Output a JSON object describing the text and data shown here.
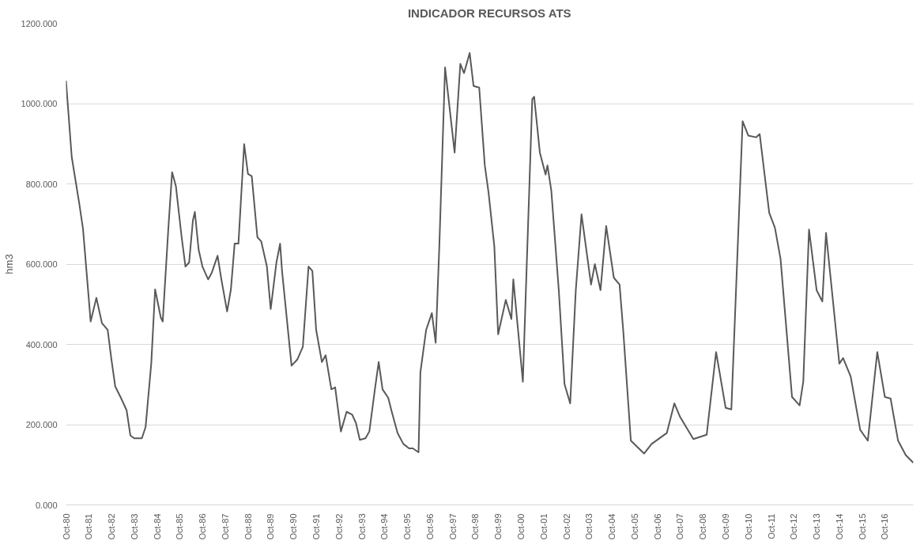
{
  "chart_data": {
    "type": "line",
    "title": "INDICADOR RECURSOS ATS",
    "ylabel": "hm3",
    "x": [
      "1980-10",
      "1981-01",
      "1981-05",
      "1981-07",
      "1981-11",
      "1982-02",
      "1982-05",
      "1982-08",
      "1982-10",
      "1982-12",
      "1983-03",
      "1983-06",
      "1983-08",
      "1983-10",
      "1984-02",
      "1984-04",
      "1984-07",
      "1984-09",
      "1984-12",
      "1985-01",
      "1985-04",
      "1985-06",
      "1985-08",
      "1985-11",
      "1986-01",
      "1986-03",
      "1986-05",
      "1986-06",
      "1986-08",
      "1986-10",
      "1987-01",
      "1987-03",
      "1987-06",
      "1987-08",
      "1987-11",
      "1988-01",
      "1988-03",
      "1988-05",
      "1988-08",
      "1988-10",
      "1988-12",
      "1989-03",
      "1989-05",
      "1989-08",
      "1989-10",
      "1990-01",
      "1990-03",
      "1990-04",
      "1990-08",
      "1990-09",
      "1990-12",
      "1991-03",
      "1991-06",
      "1991-08",
      "1991-10",
      "1992-01",
      "1992-03",
      "1992-06",
      "1992-08",
      "1992-11",
      "1993-02",
      "1993-05",
      "1993-07",
      "1993-09",
      "1993-12",
      "1994-02",
      "1994-05",
      "1994-07",
      "1994-09",
      "1994-12",
      "1995-02",
      "1995-05",
      "1995-08",
      "1995-11",
      "1996-01",
      "1996-04",
      "1996-05",
      "1996-08",
      "1996-11",
      "1997-01",
      "1997-03",
      "1997-06",
      "1997-11",
      "1998-02",
      "1998-04",
      "1998-07",
      "1998-09",
      "1998-12",
      "1999-03",
      "1999-05",
      "1999-08",
      "1999-10",
      "2000-02",
      "2000-05",
      "2000-06",
      "2000-11",
      "2001-04",
      "2001-05",
      "2001-08",
      "2001-11",
      "2001-12",
      "2002-02",
      "2002-06",
      "2002-09",
      "2002-12",
      "2003-03",
      "2003-06",
      "2003-11",
      "2004-01",
      "2004-04",
      "2004-07",
      "2004-11",
      "2005-02",
      "2005-04",
      "2005-08",
      "2006-03",
      "2006-07",
      "2007-03",
      "2007-07",
      "2007-10",
      "2008-05",
      "2008-12",
      "2009-05",
      "2009-10",
      "2010-01",
      "2010-07",
      "2010-10",
      "2011-02",
      "2011-04",
      "2011-09",
      "2011-12",
      "2012-03",
      "2012-09",
      "2013-01",
      "2013-03",
      "2013-06",
      "2013-10",
      "2014-01",
      "2014-03",
      "2014-10",
      "2014-12",
      "2015-04",
      "2015-09",
      "2016-01",
      "2016-06",
      "2016-10",
      "2017-01",
      "2017-05",
      "2017-09",
      "2018-01"
    ],
    "series": [
      {
        "color": "#595959",
        "values": [
          1057,
          867,
          752,
          688,
          457,
          516,
          453,
          436,
          362,
          295,
          267,
          236,
          173,
          166,
          166,
          194,
          352,
          537,
          467,
          457,
          688,
          829,
          794,
          667,
          594,
          604,
          709,
          730,
          636,
          594,
          562,
          579,
          621,
          562,
          482,
          537,
          651,
          651,
          899,
          825,
          819,
          667,
          657,
          594,
          488,
          604,
          651,
          583,
          394,
          347,
          362,
          394,
          594,
          583,
          436,
          356,
          373,
          288,
          293,
          183,
          232,
          225,
          204,
          162,
          166,
          183,
          288,
          356,
          288,
          267,
          229,
          179,
          152,
          141,
          141,
          131,
          331,
          436,
          478,
          404,
          646,
          1090,
          878,
          1099,
          1076,
          1126,
          1044,
          1040,
          846,
          777,
          644,
          425,
          511,
          463,
          562,
          307,
          1011,
          1017,
          878,
          823,
          846,
          783,
          535,
          301,
          253,
          535,
          724,
          549,
          600,
          535,
          695,
          566,
          549,
          434,
          160,
          128,
          152,
          179,
          253,
          219,
          164,
          175,
          381,
          242,
          238,
          956,
          920,
          916,
          924,
          728,
          691,
          613,
          269,
          248,
          307,
          686,
          535,
          507,
          678,
          352,
          366,
          320,
          187,
          160,
          381,
          269,
          265,
          160,
          124,
          105
        ]
      }
    ],
    "xlim": [
      "1980-10",
      "2018-01"
    ],
    "xticks": [
      {
        "value": "1980-10",
        "label": "Oct-80"
      },
      {
        "value": "1981-10",
        "label": "Oct-81"
      },
      {
        "value": "1982-10",
        "label": "Oct-82"
      },
      {
        "value": "1983-10",
        "label": "Oct-83"
      },
      {
        "value": "1984-10",
        "label": "Oct-84"
      },
      {
        "value": "1985-10",
        "label": "Oct-85"
      },
      {
        "value": "1986-10",
        "label": "Oct-86"
      },
      {
        "value": "1987-10",
        "label": "Oct-87"
      },
      {
        "value": "1988-10",
        "label": "Oct-88"
      },
      {
        "value": "1989-10",
        "label": "Oct-89"
      },
      {
        "value": "1990-10",
        "label": "Oct-90"
      },
      {
        "value": "1991-10",
        "label": "Oct-91"
      },
      {
        "value": "1992-10",
        "label": "Oct-92"
      },
      {
        "value": "1993-10",
        "label": "Oct-93"
      },
      {
        "value": "1994-10",
        "label": "Oct-94"
      },
      {
        "value": "1995-10",
        "label": "Oct-95"
      },
      {
        "value": "1996-10",
        "label": "Oct-96"
      },
      {
        "value": "1997-10",
        "label": "Oct-97"
      },
      {
        "value": "1998-10",
        "label": "Oct-98"
      },
      {
        "value": "1999-10",
        "label": "Oct-99"
      },
      {
        "value": "2000-10",
        "label": "Oct-00"
      },
      {
        "value": "2001-10",
        "label": "Oct-01"
      },
      {
        "value": "2002-10",
        "label": "Oct-02"
      },
      {
        "value": "2003-10",
        "label": "Oct-03"
      },
      {
        "value": "2004-10",
        "label": "Oct-04"
      },
      {
        "value": "2005-10",
        "label": "Oct-05"
      },
      {
        "value": "2006-10",
        "label": "Oct-06"
      },
      {
        "value": "2007-10",
        "label": "Oct-07"
      },
      {
        "value": "2008-10",
        "label": "Oct-08"
      },
      {
        "value": "2009-10",
        "label": "Oct-09"
      },
      {
        "value": "2010-10",
        "label": "Oct-10"
      },
      {
        "value": "2011-10",
        "label": "Oct-11"
      },
      {
        "value": "2012-10",
        "label": "Oct-12"
      },
      {
        "value": "2013-10",
        "label": "Oct-13"
      },
      {
        "value": "2014-10",
        "label": "Oct-14"
      },
      {
        "value": "2015-10",
        "label": "Oct-15"
      },
      {
        "value": "2016-10",
        "label": "Oct-16"
      }
    ],
    "ylim": [
      0,
      1200
    ],
    "yticks": [
      {
        "value": 0,
        "label": "0.000"
      },
      {
        "value": 200,
        "label": "200.000"
      },
      {
        "value": 400,
        "label": "400.000"
      },
      {
        "value": 600,
        "label": "600.000"
      },
      {
        "value": 800,
        "label": "800.000"
      },
      {
        "value": 1000,
        "label": "1000.000"
      },
      {
        "value": 1200,
        "label": "1200.000"
      }
    ],
    "grid": "y",
    "marker": "none",
    "line_style": "solid"
  }
}
